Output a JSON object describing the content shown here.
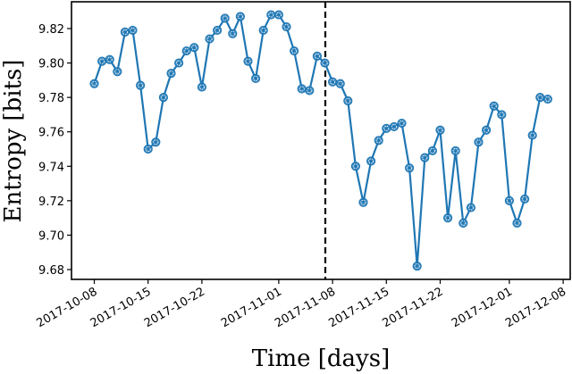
{
  "chart_data": {
    "type": "line",
    "title": "",
    "xlabel": "Time [days]",
    "ylabel": "Entropy [bits]",
    "ylim": [
      9.673,
      9.835
    ],
    "xlim": [
      "2017-10-05",
      "2017-12-08"
    ],
    "grid": false,
    "legend": null,
    "line_color": "#1f77b4",
    "marker": "circle",
    "yticks": [
      9.68,
      9.7,
      9.72,
      9.74,
      9.76,
      9.78,
      9.8,
      9.82
    ],
    "ytick_labels": [
      "9.68",
      "9.70",
      "9.72",
      "9.74",
      "9.76",
      "9.78",
      "9.80",
      "9.82"
    ],
    "xticks": [
      "2017-10-08",
      "2017-10-15",
      "2017-10-22",
      "2017-11-01",
      "2017-11-08",
      "2017-11-15",
      "2017-11-22",
      "2017-12-01",
      "2017-12-08"
    ],
    "xtick_labels": [
      "2017-10-08",
      "2017-10-15",
      "2017-10-22",
      "2017-11-01",
      "2017-11-08",
      "2017-11-15",
      "2017-11-22",
      "2017-12-01",
      "2017-12-08"
    ],
    "annotations": [
      {
        "type": "vline",
        "style": "dashed",
        "color": "#000000",
        "x": "2017-11-07"
      }
    ],
    "x": [
      "2017-10-08",
      "2017-10-09",
      "2017-10-10",
      "2017-10-11",
      "2017-10-12",
      "2017-10-13",
      "2017-10-14",
      "2017-10-15",
      "2017-10-16",
      "2017-10-17",
      "2017-10-18",
      "2017-10-19",
      "2017-10-20",
      "2017-10-21",
      "2017-10-22",
      "2017-10-23",
      "2017-10-24",
      "2017-10-25",
      "2017-10-26",
      "2017-10-27",
      "2017-10-28",
      "2017-10-29",
      "2017-10-30",
      "2017-10-31",
      "2017-11-01",
      "2017-11-02",
      "2017-11-03",
      "2017-11-04",
      "2017-11-05",
      "2017-11-06",
      "2017-11-07",
      "2017-11-08",
      "2017-11-09",
      "2017-11-10",
      "2017-11-11",
      "2017-11-12",
      "2017-11-13",
      "2017-11-14",
      "2017-11-15",
      "2017-11-16",
      "2017-11-17",
      "2017-11-18",
      "2017-11-19",
      "2017-11-20",
      "2017-11-21",
      "2017-11-22",
      "2017-11-23",
      "2017-11-24",
      "2017-11-25",
      "2017-11-26",
      "2017-11-27",
      "2017-11-28",
      "2017-11-29",
      "2017-11-30",
      "2017-12-01",
      "2017-12-02",
      "2017-12-03",
      "2017-12-04",
      "2017-12-05",
      "2017-12-06"
    ],
    "series": [
      {
        "name": "Entropy",
        "values": [
          9.788,
          9.801,
          9.802,
          9.795,
          9.818,
          9.819,
          9.787,
          9.75,
          9.754,
          9.78,
          9.794,
          9.8,
          9.807,
          9.809,
          9.786,
          9.814,
          9.819,
          9.826,
          9.817,
          9.827,
          9.801,
          9.791,
          9.819,
          9.828,
          9.828,
          9.821,
          9.807,
          9.785,
          9.784,
          9.804,
          9.8,
          9.789,
          9.788,
          9.778,
          9.74,
          9.719,
          9.743,
          9.755,
          9.762,
          9.763,
          9.765,
          9.739,
          9.682,
          9.745,
          9.749,
          9.761,
          9.71,
          9.749,
          9.707,
          9.716,
          9.754,
          9.761,
          9.775,
          9.77,
          9.72,
          9.707,
          9.721,
          9.758,
          9.78,
          9.779
        ]
      }
    ]
  }
}
